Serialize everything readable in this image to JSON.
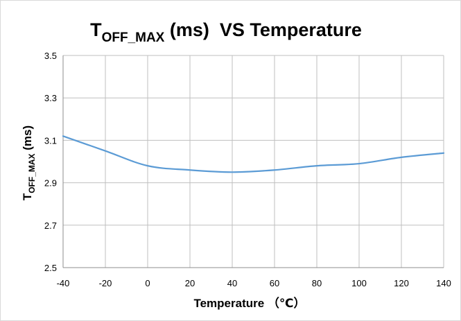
{
  "chart_data": {
    "type": "line",
    "title": {
      "main": "T",
      "sub": "OFF_MAX",
      "rest": " (ms)  VS Temperature"
    },
    "xlabel": "Temperature （℃）",
    "ylabel": {
      "main": "T",
      "sub": "OFF_MAX",
      "rest": " (ms)"
    },
    "xlim": [
      -40,
      140
    ],
    "ylim": [
      2.5,
      3.5
    ],
    "x_ticks": [
      "-40",
      "-20",
      "0",
      "20",
      "40",
      "60",
      "80",
      "100",
      "120",
      "140"
    ],
    "y_ticks": [
      "2.5",
      "2.7",
      "2.9",
      "3.1",
      "3.3",
      "3.5"
    ],
    "grid": true,
    "series": [
      {
        "color": "#5b9bd5",
        "x": [
          -40,
          -20,
          0,
          20,
          40,
          60,
          80,
          100,
          120,
          140
        ],
        "y": [
          3.12,
          3.05,
          2.98,
          2.96,
          2.95,
          2.96,
          2.98,
          2.99,
          3.02,
          3.04
        ]
      }
    ]
  }
}
